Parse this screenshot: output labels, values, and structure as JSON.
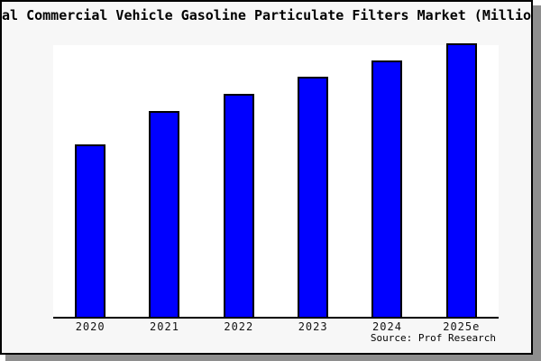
{
  "title": "al Commercial Vehicle Gasoline Particulate Filters Market (Million",
  "source_credit": "Source: Prof Research",
  "colors": {
    "bar_fill": "#0000ff",
    "bar_border": "#000000",
    "canvas_background": "#f7f7f7",
    "plot_background": "#ffffff",
    "axis_line": "#000000",
    "frame_shadow": "#8e8e8e",
    "text": "#000000"
  },
  "chart_data": {
    "type": "bar",
    "title": "al Commercial Vehicle Gasoline Particulate Filters Market (Million",
    "categories": [
      "2020",
      "2021",
      "2022",
      "2023",
      "2024",
      "2025e"
    ],
    "values": [
      62.8,
      75.1,
      81.4,
      87.7,
      93.7,
      100
    ],
    "xlabel": "",
    "ylabel": "",
    "ylim": [
      0,
      100
    ],
    "grid": false,
    "legend": "none",
    "y_axis_shown": false
  }
}
